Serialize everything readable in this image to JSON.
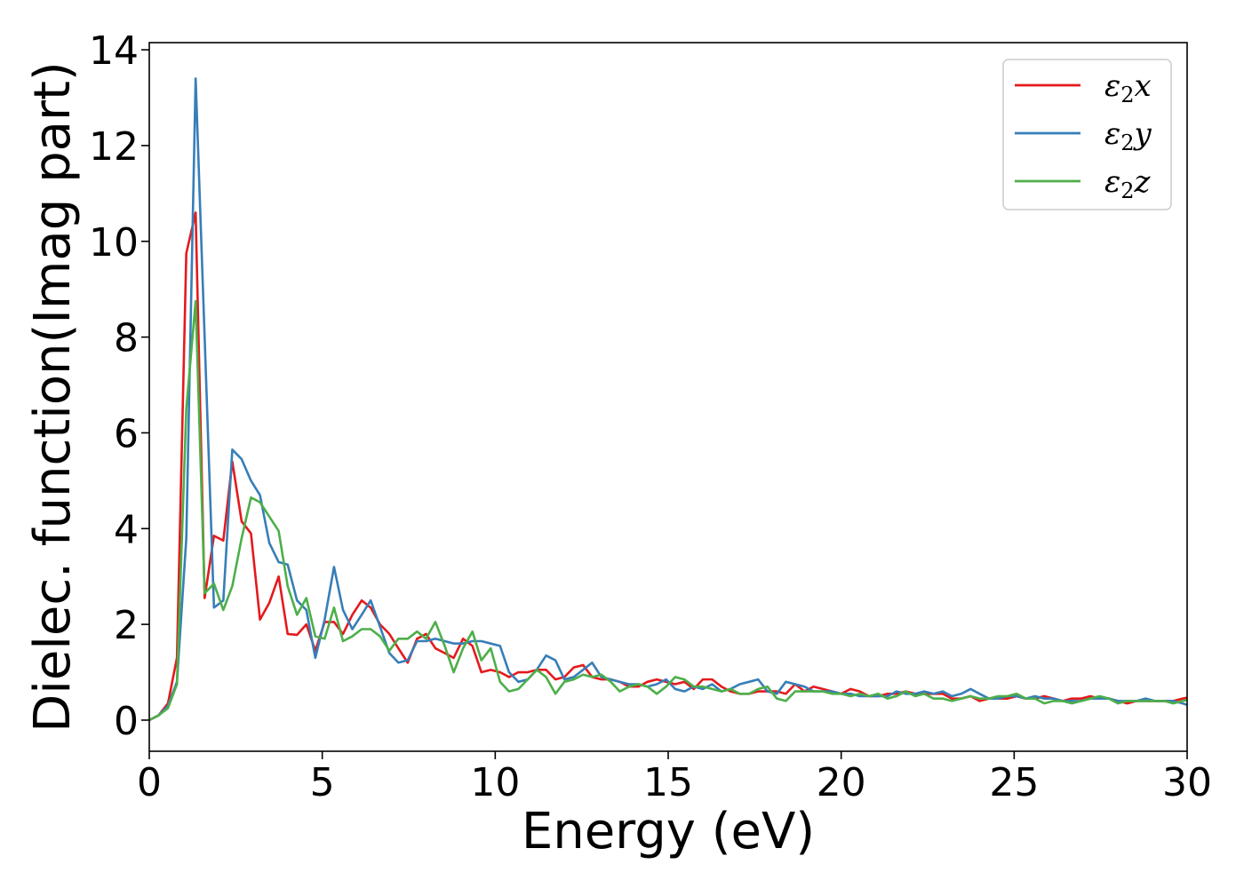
{
  "chart_data": {
    "type": "line",
    "title": "",
    "xlabel": "Energy (eV)",
    "ylabel": "Dielec. function(Imag part)",
    "xlim": [
      0,
      30
    ],
    "ylim": [
      -0.65,
      14.15
    ],
    "xticks": [
      0,
      5,
      10,
      15,
      20,
      25,
      30
    ],
    "yticks": [
      0,
      2,
      4,
      6,
      8,
      10,
      12,
      14
    ],
    "grid": false,
    "legend_position": "top-right",
    "series": [
      {
        "name": "ε₂x",
        "legend_base": "ε",
        "legend_sub": "2",
        "legend_suffix": "x",
        "color": "#e41a1c",
        "x": [
          0,
          0.27,
          0.54,
          0.8,
          1.07,
          1.34,
          1.6,
          1.87,
          2.14,
          2.4,
          2.67,
          2.94,
          3.2,
          3.47,
          3.74,
          4.0,
          4.27,
          4.54,
          4.8,
          5.07,
          5.34,
          5.6,
          5.87,
          6.14,
          6.4,
          6.67,
          6.94,
          7.2,
          7.47,
          7.74,
          8.0,
          8.27,
          8.54,
          8.8,
          9.07,
          9.34,
          9.6,
          9.87,
          10.14,
          10.4,
          10.67,
          10.94,
          11.2,
          11.47,
          11.74,
          12.0,
          12.27,
          12.54,
          12.8,
          13.07,
          13.34,
          13.6,
          13.87,
          14.14,
          14.4,
          14.67,
          14.94,
          15.2,
          15.47,
          15.74,
          16.0,
          16.27,
          16.54,
          16.8,
          17.07,
          17.34,
          17.6,
          17.87,
          18.14,
          18.4,
          18.67,
          18.94,
          19.2,
          19.47,
          19.74,
          20.0,
          20.27,
          20.54,
          20.8,
          21.07,
          21.34,
          21.6,
          21.87,
          22.14,
          22.4,
          22.67,
          22.94,
          23.2,
          23.47,
          23.74,
          24.0,
          24.27,
          24.54,
          24.8,
          25.07,
          25.34,
          25.6,
          25.87,
          26.14,
          26.4,
          26.67,
          26.94,
          27.2,
          27.47,
          27.74,
          28.0,
          28.27,
          28.54,
          28.8,
          29.07,
          29.34,
          29.6,
          29.87,
          30.0
        ],
        "values": [
          0.0,
          0.1,
          0.35,
          1.3,
          9.75,
          10.6,
          2.55,
          3.85,
          3.75,
          5.4,
          4.15,
          3.9,
          2.1,
          2.45,
          3.0,
          1.8,
          1.78,
          2.0,
          1.45,
          2.05,
          2.05,
          1.8,
          2.2,
          2.5,
          2.35,
          2.0,
          1.8,
          1.5,
          1.2,
          1.7,
          1.8,
          1.5,
          1.4,
          1.3,
          1.7,
          1.55,
          1.0,
          1.05,
          1.0,
          0.9,
          1.0,
          1.0,
          1.05,
          1.05,
          0.85,
          0.9,
          1.1,
          1.15,
          0.9,
          0.85,
          0.85,
          0.8,
          0.7,
          0.7,
          0.8,
          0.85,
          0.8,
          0.75,
          0.8,
          0.65,
          0.85,
          0.85,
          0.7,
          0.6,
          0.55,
          0.55,
          0.6,
          0.6,
          0.6,
          0.55,
          0.75,
          0.6,
          0.7,
          0.65,
          0.6,
          0.55,
          0.65,
          0.6,
          0.5,
          0.5,
          0.55,
          0.55,
          0.6,
          0.55,
          0.55,
          0.55,
          0.55,
          0.45,
          0.45,
          0.5,
          0.4,
          0.45,
          0.45,
          0.45,
          0.5,
          0.45,
          0.45,
          0.5,
          0.45,
          0.4,
          0.45,
          0.45,
          0.5,
          0.45,
          0.45,
          0.4,
          0.35,
          0.4,
          0.4,
          0.4,
          0.4,
          0.4,
          0.45,
          0.47
        ]
      },
      {
        "name": "ε₂y",
        "legend_base": "ε",
        "legend_sub": "2",
        "legend_suffix": "y",
        "color": "#377eb8",
        "x": [
          0,
          0.27,
          0.54,
          0.8,
          1.07,
          1.34,
          1.6,
          1.87,
          2.14,
          2.4,
          2.67,
          2.94,
          3.2,
          3.47,
          3.74,
          4.0,
          4.27,
          4.54,
          4.8,
          5.07,
          5.34,
          5.6,
          5.87,
          6.14,
          6.4,
          6.67,
          6.94,
          7.2,
          7.47,
          7.74,
          8.0,
          8.27,
          8.54,
          8.8,
          9.07,
          9.34,
          9.6,
          9.87,
          10.14,
          10.4,
          10.67,
          10.94,
          11.2,
          11.47,
          11.74,
          12.0,
          12.27,
          12.54,
          12.8,
          13.07,
          13.34,
          13.6,
          13.87,
          14.14,
          14.4,
          14.67,
          14.94,
          15.2,
          15.47,
          15.74,
          16.0,
          16.27,
          16.54,
          16.8,
          17.07,
          17.34,
          17.6,
          17.87,
          18.14,
          18.4,
          18.67,
          18.94,
          19.2,
          19.47,
          19.74,
          20.0,
          20.27,
          20.54,
          20.8,
          21.07,
          21.34,
          21.6,
          21.87,
          22.14,
          22.4,
          22.67,
          22.94,
          23.2,
          23.47,
          23.74,
          24.0,
          24.27,
          24.54,
          24.8,
          25.07,
          25.34,
          25.6,
          25.87,
          26.14,
          26.4,
          26.67,
          26.94,
          27.2,
          27.47,
          27.74,
          28.0,
          28.27,
          28.54,
          28.8,
          29.07,
          29.34,
          29.6,
          29.87,
          30.0
        ],
        "values": [
          0.0,
          0.1,
          0.3,
          0.8,
          3.8,
          13.4,
          8.0,
          2.35,
          2.5,
          5.65,
          5.45,
          5.0,
          4.7,
          3.7,
          3.3,
          3.25,
          2.5,
          2.3,
          1.3,
          2.1,
          3.2,
          2.3,
          1.9,
          2.2,
          2.5,
          1.95,
          1.4,
          1.2,
          1.25,
          1.65,
          1.65,
          1.7,
          1.65,
          1.6,
          1.6,
          1.65,
          1.65,
          1.6,
          1.55,
          1.0,
          0.8,
          0.85,
          1.05,
          1.35,
          1.25,
          0.85,
          0.9,
          1.05,
          1.2,
          0.9,
          0.85,
          0.8,
          0.75,
          0.75,
          0.7,
          0.75,
          0.85,
          0.65,
          0.6,
          0.7,
          0.65,
          0.75,
          0.6,
          0.65,
          0.75,
          0.8,
          0.85,
          0.6,
          0.55,
          0.8,
          0.75,
          0.7,
          0.6,
          0.6,
          0.6,
          0.55,
          0.55,
          0.5,
          0.5,
          0.5,
          0.5,
          0.6,
          0.55,
          0.55,
          0.6,
          0.55,
          0.6,
          0.5,
          0.55,
          0.65,
          0.55,
          0.45,
          0.45,
          0.5,
          0.5,
          0.45,
          0.5,
          0.45,
          0.45,
          0.4,
          0.4,
          0.4,
          0.45,
          0.45,
          0.45,
          0.4,
          0.4,
          0.4,
          0.45,
          0.4,
          0.4,
          0.4,
          0.35,
          0.32
        ]
      },
      {
        "name": "ε₂z",
        "legend_base": "ε",
        "legend_sub": "2",
        "legend_suffix": "z",
        "color": "#4daf4a",
        "x": [
          0,
          0.27,
          0.54,
          0.8,
          1.07,
          1.34,
          1.6,
          1.87,
          2.14,
          2.4,
          2.67,
          2.94,
          3.2,
          3.47,
          3.74,
          4.0,
          4.27,
          4.54,
          4.8,
          5.07,
          5.34,
          5.6,
          5.87,
          6.14,
          6.4,
          6.67,
          6.94,
          7.2,
          7.47,
          7.74,
          8.0,
          8.27,
          8.54,
          8.8,
          9.07,
          9.34,
          9.6,
          9.87,
          10.14,
          10.4,
          10.67,
          10.94,
          11.2,
          11.47,
          11.74,
          12.0,
          12.27,
          12.54,
          12.8,
          13.07,
          13.34,
          13.6,
          13.87,
          14.14,
          14.4,
          14.67,
          14.94,
          15.2,
          15.47,
          15.74,
          16.0,
          16.27,
          16.54,
          16.8,
          17.07,
          17.34,
          17.6,
          17.87,
          18.14,
          18.4,
          18.67,
          18.94,
          19.2,
          19.47,
          19.74,
          20.0,
          20.27,
          20.54,
          20.8,
          21.07,
          21.34,
          21.6,
          21.87,
          22.14,
          22.4,
          22.67,
          22.94,
          23.2,
          23.47,
          23.74,
          24.0,
          24.27,
          24.54,
          24.8,
          25.07,
          25.34,
          25.6,
          25.87,
          26.14,
          26.4,
          26.67,
          26.94,
          27.2,
          27.47,
          27.74,
          28.0,
          28.27,
          28.54,
          28.8,
          29.07,
          29.34,
          29.6,
          29.87,
          30.0
        ],
        "values": [
          0.0,
          0.1,
          0.25,
          0.75,
          6.5,
          8.75,
          2.65,
          2.85,
          2.3,
          2.8,
          3.8,
          4.65,
          4.55,
          4.25,
          3.95,
          2.8,
          2.2,
          2.55,
          1.75,
          1.7,
          2.35,
          1.65,
          1.75,
          1.9,
          1.9,
          1.75,
          1.45,
          1.7,
          1.7,
          1.85,
          1.7,
          2.05,
          1.55,
          1.0,
          1.5,
          1.85,
          1.25,
          1.5,
          0.8,
          0.6,
          0.65,
          0.85,
          1.05,
          0.9,
          0.55,
          0.8,
          0.85,
          0.95,
          0.9,
          0.95,
          0.8,
          0.6,
          0.7,
          0.75,
          0.7,
          0.55,
          0.7,
          0.9,
          0.85,
          0.7,
          0.7,
          0.65,
          0.6,
          0.65,
          0.55,
          0.55,
          0.65,
          0.7,
          0.45,
          0.4,
          0.6,
          0.6,
          0.6,
          0.6,
          0.55,
          0.55,
          0.5,
          0.55,
          0.5,
          0.55,
          0.45,
          0.5,
          0.6,
          0.5,
          0.55,
          0.45,
          0.45,
          0.4,
          0.45,
          0.5,
          0.45,
          0.45,
          0.5,
          0.5,
          0.55,
          0.45,
          0.45,
          0.35,
          0.4,
          0.4,
          0.35,
          0.4,
          0.45,
          0.5,
          0.45,
          0.35,
          0.4,
          0.4,
          0.4,
          0.4,
          0.4,
          0.35,
          0.4,
          0.42
        ]
      }
    ]
  }
}
